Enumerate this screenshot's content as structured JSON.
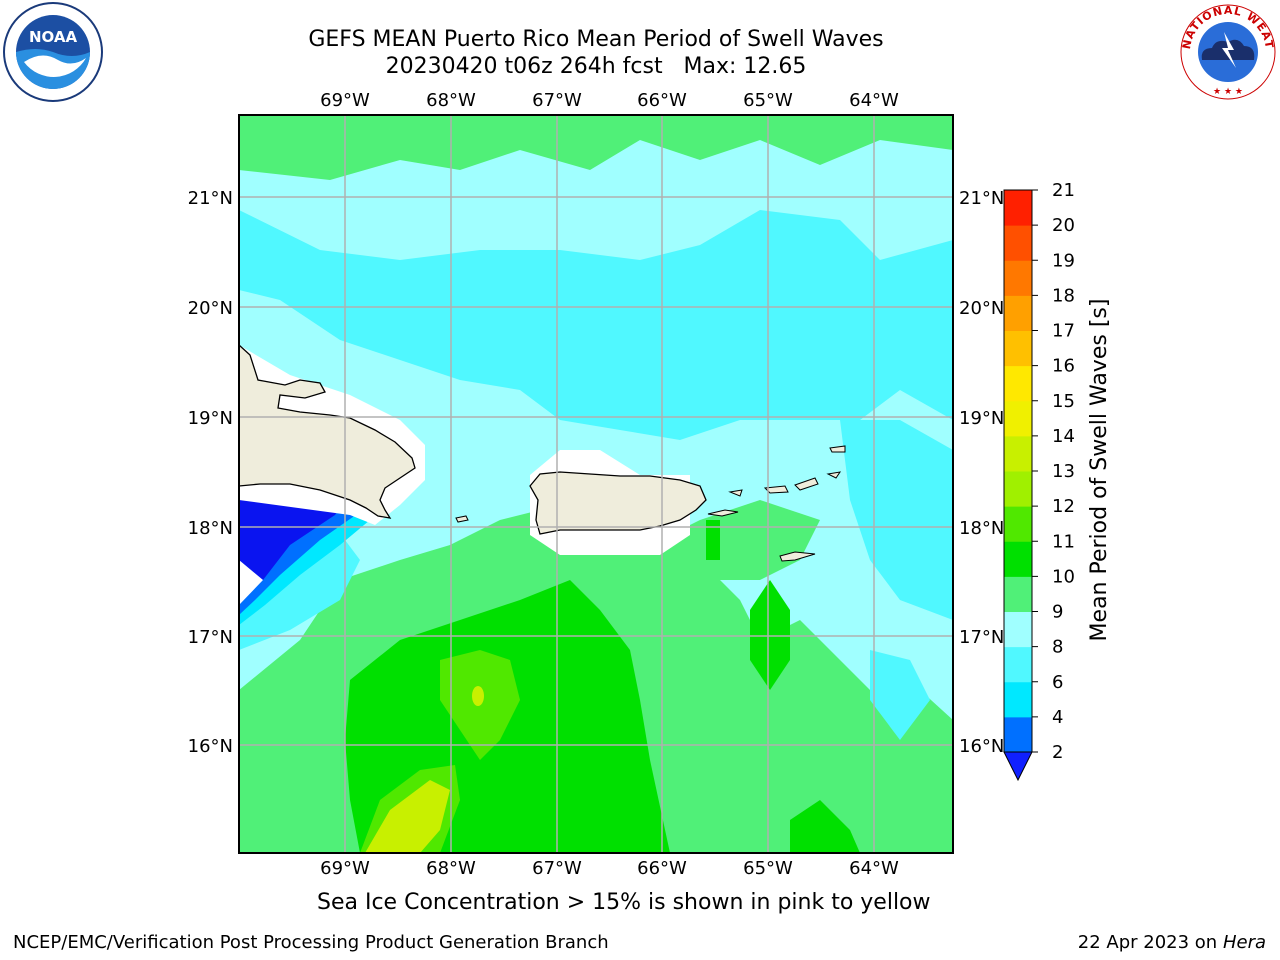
{
  "header": {
    "title_line1": "GEFS MEAN Puerto Rico Mean Period of Swell Waves",
    "title_line2": "20230420 t06z 264h fcst   Max: 12.65"
  },
  "logos": {
    "left": "noaa-logo",
    "right": "national-weather-service-logo",
    "nws_text": "NATIONAL WEATHER SERVICE",
    "noaa_text": "NOAA"
  },
  "map": {
    "lon_labels": [
      "69°W",
      "68°W",
      "67°W",
      "66°W",
      "65°W",
      "64°W"
    ],
    "lat_labels": [
      "21°N",
      "20°N",
      "19°N",
      "18°N",
      "17°N",
      "16°N"
    ],
    "land_color": "#efeddc",
    "grid_color": "#b0b0b0"
  },
  "colorbar": {
    "label": "Mean Period of Swell Waves [s]",
    "ticks": [
      "2",
      "4",
      "6",
      "8",
      "9",
      "10",
      "11",
      "12",
      "13",
      "14",
      "15",
      "16",
      "17",
      "18",
      "19",
      "20",
      "21"
    ],
    "colors": [
      "#0a14f0",
      "#0070ff",
      "#00e8ff",
      "#50f8ff",
      "#a0ffff",
      "#50f078",
      "#00e000",
      "#50e800",
      "#a0f000",
      "#c8f000",
      "#f0f000",
      "#ffe800",
      "#ffc000",
      "#ffa000",
      "#ff7800",
      "#ff5000",
      "#ff2000",
      "#ff0000"
    ],
    "under_color": "#1020ff"
  },
  "note": "Sea Ice Concentration > 15% is shown in pink to yellow",
  "footer": {
    "left": "NCEP/EMC/Verification Post Processing Product Generation Branch",
    "right_date": "22 Apr 2023 on ",
    "right_machine": "Hera"
  }
}
